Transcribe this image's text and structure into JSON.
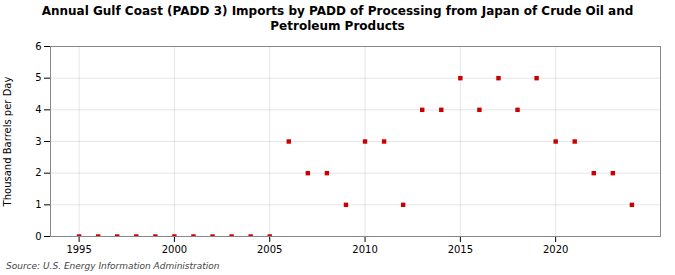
{
  "chart_data": {
    "type": "scatter",
    "title": "Annual Gulf Coast (PADD 3) Imports by PADD of Processing from Japan of Crude Oil and\nPetroleum Products",
    "ylabel": "Thousand Barrels per Day",
    "source": "Source: U.S. Energy Information Administration",
    "x": [
      1995,
      1996,
      1997,
      1998,
      1999,
      2000,
      2001,
      2002,
      2003,
      2004,
      2005,
      2006,
      2007,
      2008,
      2009,
      2010,
      2011,
      2012,
      2013,
      2014,
      2015,
      2016,
      2017,
      2018,
      2019,
      2020,
      2021,
      2022,
      2023,
      2024
    ],
    "values": [
      0,
      0,
      0,
      0,
      0,
      0,
      0,
      0,
      0,
      0,
      0,
      3,
      2,
      2,
      1,
      3,
      3,
      1,
      4,
      4,
      5,
      4,
      5,
      4,
      5,
      3,
      3,
      2,
      2,
      1
    ],
    "color": "#cc0000",
    "marker": "square",
    "xlim": [
      1993.5,
      2025.5
    ],
    "xticks": [
      1995,
      2000,
      2005,
      2010,
      2015,
      2020
    ],
    "ylim": [
      0,
      6
    ],
    "yticks": [
      0,
      1,
      2,
      3,
      4,
      5,
      6
    ],
    "grid": true
  }
}
